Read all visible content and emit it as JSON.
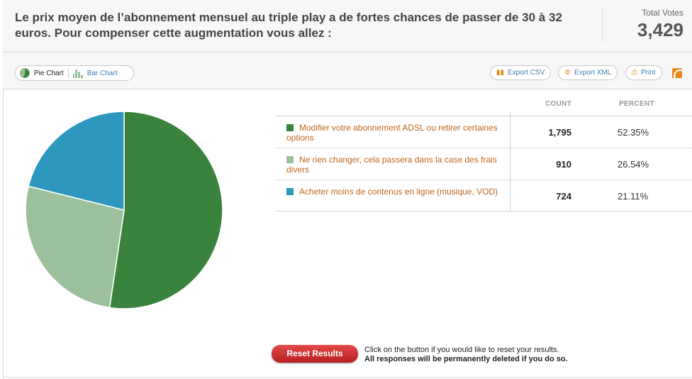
{
  "question": "Le prix moyen de l’abonnement mensuel au triple play a de fortes chances de passer de 30 à 32 euros. Pour compenser cette augmentation vous allez :",
  "total_votes": {
    "label": "Total Votes",
    "value": "3,429"
  },
  "toolbar": {
    "pie_label": "Pie Chart",
    "bar_label": "Bar Chart",
    "export_csv": "Export CSV",
    "export_xml": "Export XML",
    "print": "Print"
  },
  "table": {
    "count_header": "COUNT",
    "percent_header": "PERCENT",
    "rows": [
      {
        "label": "Modifier votre abonnement ADSL ou retirer certaines options",
        "count": "1,795",
        "percent": "52.35%",
        "color": "#3a833c"
      },
      {
        "label": "Ne rien changer, cela passera dans la case des frais divers",
        "count": "910",
        "percent": "26.54%",
        "color": "#9cc09b"
      },
      {
        "label": "Acheter moins de contenus en ligne (musique, VOD)",
        "count": "724",
        "percent": "21.11%",
        "color": "#2d98bd"
      }
    ]
  },
  "chart_data": {
    "type": "pie",
    "categories": [
      "Modifier votre abonnement ADSL ou retirer certaines options",
      "Ne rien changer, cela passera dans la case des frais divers",
      "Acheter moins de contenus en ligne (musique, VOD)"
    ],
    "values": [
      1795,
      910,
      724
    ],
    "colors": [
      "#3a833c",
      "#9cc09b",
      "#2d98bd"
    ]
  },
  "reset": {
    "button": "Reset Results",
    "note_line1": "Click on the button if you would like to reset your results.",
    "note_line2": "All responses will be permanently deleted if you do so."
  }
}
